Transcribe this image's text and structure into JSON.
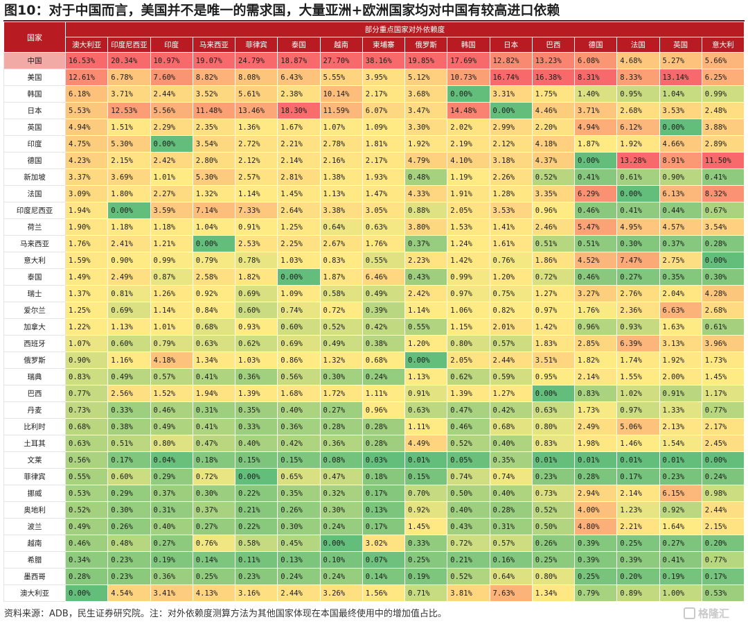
{
  "title": "图10：对于中国而言，美国并不是唯一的需求国，大量亚洲+欧洲国家均对中国有较高进口依赖",
  "footer": "资料来源：ADB，民生证券研究院。注：对外依赖度测算方法为其他国家体现在本国最终使用中的增加值占比。",
  "watermark": "格隆汇",
  "table": {
    "corner_label": "国家",
    "group_label": "部分重点国家对外依赖度",
    "columns": [
      "澳大利亚",
      "印度尼西亚",
      "印度",
      "马来西亚",
      "菲律宾",
      "泰国",
      "越南",
      "柬埔寨",
      "俄罗斯",
      "韩国",
      "日本",
      "巴西",
      "德国",
      "法国",
      "英国",
      "意大利"
    ],
    "rows": [
      {
        "country": "中国",
        "values": [
          "16.53%",
          "20.34%",
          "10.97%",
          "19.07%",
          "24.79%",
          "18.87%",
          "27.70%",
          "38.16%",
          "19.85%",
          "17.69%",
          "12.82%",
          "13.23%",
          "6.08%",
          "4.68%",
          "5.27%",
          "5.66%"
        ]
      },
      {
        "country": "美国",
        "values": [
          "12.61%",
          "6.78%",
          "7.60%",
          "8.82%",
          "8.08%",
          "6.43%",
          "5.55%",
          "3.95%",
          "5.12%",
          "10.73%",
          "16.74%",
          "16.38%",
          "8.31%",
          "8.33%",
          "13.14%",
          "6.25%"
        ]
      },
      {
        "country": "韩国",
        "values": [
          "6.18%",
          "3.71%",
          "2.44%",
          "3.52%",
          "5.61%",
          "2.38%",
          "10.14%",
          "2.17%",
          "3.68%",
          "0.00%",
          "3.31%",
          "1.75%",
          "1.40%",
          "0.95%",
          "1.04%",
          "0.99%"
        ]
      },
      {
        "country": "日本",
        "values": [
          "5.53%",
          "12.53%",
          "5.56%",
          "11.48%",
          "13.46%",
          "18.30%",
          "11.59%",
          "6.07%",
          "3.47%",
          "14.48%",
          "0.00%",
          "4.46%",
          "3.71%",
          "2.68%",
          "3.53%",
          "2.48%"
        ]
      },
      {
        "country": "英国",
        "values": [
          "4.94%",
          "1.51%",
          "2.29%",
          "2.35%",
          "1.36%",
          "1.67%",
          "1.07%",
          "1.09%",
          "3.30%",
          "2.02%",
          "2.99%",
          "2.20%",
          "4.94%",
          "6.12%",
          "0.00%",
          "3.88%"
        ]
      },
      {
        "country": "印度",
        "values": [
          "4.75%",
          "5.30%",
          "0.00%",
          "3.54%",
          "2.72%",
          "2.21%",
          "2.78%",
          "1.81%",
          "1.92%",
          "2.19%",
          "2.12%",
          "4.18%",
          "1.87%",
          "1.92%",
          "4.66%",
          "2.89%"
        ]
      },
      {
        "country": "德国",
        "values": [
          "4.23%",
          "2.15%",
          "2.42%",
          "2.80%",
          "2.12%",
          "2.14%",
          "2.16%",
          "2.17%",
          "4.79%",
          "4.10%",
          "3.18%",
          "4.37%",
          "0.00%",
          "13.28%",
          "8.91%",
          "11.50%"
        ]
      },
      {
        "country": "新加坡",
        "values": [
          "3.37%",
          "3.69%",
          "1.01%",
          "5.30%",
          "2.57%",
          "2.81%",
          "1.38%",
          "1.93%",
          "0.48%",
          "1.19%",
          "2.26%",
          "0.52%",
          "0.41%",
          "0.61%",
          "0.90%",
          "0.41%"
        ]
      },
      {
        "country": "法国",
        "values": [
          "3.09%",
          "1.80%",
          "2.27%",
          "1.32%",
          "1.14%",
          "1.45%",
          "1.13%",
          "1.47%",
          "4.33%",
          "1.91%",
          "1.28%",
          "3.35%",
          "6.29%",
          "0.00%",
          "6.13%",
          "8.32%"
        ]
      },
      {
        "country": "印度尼西亚",
        "values": [
          "1.94%",
          "0.00%",
          "3.59%",
          "7.14%",
          "7.33%",
          "2.64%",
          "3.38%",
          "3.05%",
          "0.88%",
          "2.05%",
          "3.53%",
          "0.96%",
          "0.46%",
          "0.41%",
          "0.44%",
          "0.67%"
        ]
      },
      {
        "country": "荷兰",
        "values": [
          "1.90%",
          "1.18%",
          "1.18%",
          "1.04%",
          "0.91%",
          "1.25%",
          "0.64%",
          "0.63%",
          "3.80%",
          "1.53%",
          "1.41%",
          "2.46%",
          "5.47%",
          "4.95%",
          "4.57%",
          "3.54%"
        ]
      },
      {
        "country": "马来西亚",
        "values": [
          "1.76%",
          "2.41%",
          "1.21%",
          "0.00%",
          "2.53%",
          "2.25%",
          "2.67%",
          "1.76%",
          "0.37%",
          "1.24%",
          "1.61%",
          "0.51%",
          "0.51%",
          "0.30%",
          "0.37%",
          "0.28%"
        ]
      },
      {
        "country": "意大利",
        "values": [
          "1.59%",
          "0.90%",
          "0.99%",
          "0.79%",
          "0.78%",
          "1.03%",
          "0.83%",
          "0.55%",
          "2.23%",
          "1.42%",
          "0.76%",
          "1.86%",
          "4.52%",
          "7.47%",
          "2.75%",
          "0.00%"
        ]
      },
      {
        "country": "泰国",
        "values": [
          "1.49%",
          "2.49%",
          "0.87%",
          "2.58%",
          "1.82%",
          "0.00%",
          "1.87%",
          "6.46%",
          "0.43%",
          "0.99%",
          "1.20%",
          "0.72%",
          "0.46%",
          "0.27%",
          "0.35%",
          "0.30%"
        ]
      },
      {
        "country": "瑞士",
        "values": [
          "1.37%",
          "0.81%",
          "1.26%",
          "0.92%",
          "0.69%",
          "1.09%",
          "0.58%",
          "0.49%",
          "2.42%",
          "0.97%",
          "0.75%",
          "1.27%",
          "3.27%",
          "2.76%",
          "2.04%",
          "4.28%"
        ]
      },
      {
        "country": "爱尔兰",
        "values": [
          "1.25%",
          "0.69%",
          "1.14%",
          "0.84%",
          "0.60%",
          "0.74%",
          "0.72%",
          "0.39%",
          "1.14%",
          "1.06%",
          "0.82%",
          "0.97%",
          "1.76%",
          "2.36%",
          "6.63%",
          "2.68%"
        ]
      },
      {
        "country": "加拿大",
        "values": [
          "1.22%",
          "1.13%",
          "1.01%",
          "0.68%",
          "0.93%",
          "0.60%",
          "0.52%",
          "0.42%",
          "0.55%",
          "1.15%",
          "2.01%",
          "1.42%",
          "0.96%",
          "0.93%",
          "1.63%",
          "0.61%"
        ]
      },
      {
        "country": "西班牙",
        "values": [
          "1.07%",
          "0.60%",
          "0.79%",
          "0.63%",
          "0.62%",
          "0.69%",
          "0.49%",
          "0.38%",
          "1.20%",
          "0.80%",
          "0.57%",
          "1.83%",
          "2.85%",
          "6.39%",
          "3.13%",
          "3.96%"
        ]
      },
      {
        "country": "俄罗斯",
        "values": [
          "0.90%",
          "1.16%",
          "4.18%",
          "1.34%",
          "1.03%",
          "0.86%",
          "1.32%",
          "0.68%",
          "0.00%",
          "2.05%",
          "2.44%",
          "3.51%",
          "1.82%",
          "1.74%",
          "1.92%",
          "1.73%"
        ]
      },
      {
        "country": "瑞典",
        "values": [
          "0.83%",
          "0.49%",
          "0.57%",
          "0.41%",
          "0.36%",
          "0.56%",
          "0.30%",
          "0.24%",
          "1.13%",
          "0.62%",
          "0.59%",
          "0.95%",
          "2.14%",
          "1.55%",
          "2.00%",
          "1.45%"
        ]
      },
      {
        "country": "巴西",
        "values": [
          "0.77%",
          "2.56%",
          "1.52%",
          "1.94%",
          "1.39%",
          "1.68%",
          "1.72%",
          "1.11%",
          "0.91%",
          "1.39%",
          "1.27%",
          "0.00%",
          "0.83%",
          "1.02%",
          "0.91%",
          "1.17%"
        ]
      },
      {
        "country": "丹麦",
        "values": [
          "0.73%",
          "0.33%",
          "0.46%",
          "0.31%",
          "0.35%",
          "0.40%",
          "0.27%",
          "0.96%",
          "0.63%",
          "0.47%",
          "0.42%",
          "0.63%",
          "1.73%",
          "0.97%",
          "1.33%",
          "0.77%"
        ]
      },
      {
        "country": "比利时",
        "values": [
          "0.68%",
          "0.38%",
          "0.49%",
          "0.41%",
          "0.33%",
          "0.36%",
          "0.28%",
          "0.28%",
          "1.11%",
          "0.46%",
          "0.68%",
          "0.80%",
          "2.49%",
          "5.06%",
          "2.13%",
          "2.17%"
        ]
      },
      {
        "country": "土耳其",
        "values": [
          "0.63%",
          "0.51%",
          "0.80%",
          "0.47%",
          "0.40%",
          "0.42%",
          "0.36%",
          "0.28%",
          "4.49%",
          "0.52%",
          "0.40%",
          "0.83%",
          "1.98%",
          "1.46%",
          "1.54%",
          "2.45%"
        ]
      },
      {
        "country": "文莱",
        "values": [
          "0.56%",
          "0.17%",
          "0.04%",
          "0.18%",
          "0.15%",
          "0.15%",
          "0.08%",
          "0.03%",
          "0.01%",
          "0.05%",
          "0.35%",
          "0.01%",
          "0.01%",
          "0.01%",
          "0.01%",
          "0.00%"
        ]
      },
      {
        "country": "菲律宾",
        "values": [
          "0.55%",
          "0.60%",
          "0.29%",
          "0.72%",
          "0.00%",
          "0.65%",
          "0.47%",
          "0.18%",
          "0.15%",
          "0.74%",
          "0.74%",
          "0.23%",
          "0.28%",
          "0.17%",
          "0.23%",
          "0.24%"
        ]
      },
      {
        "country": "挪威",
        "values": [
          "0.53%",
          "0.29%",
          "0.37%",
          "0.30%",
          "0.22%",
          "0.35%",
          "0.32%",
          "0.17%",
          "0.70%",
          "0.50%",
          "0.40%",
          "0.73%",
          "2.94%",
          "2.14%",
          "6.15%",
          "0.98%"
        ]
      },
      {
        "country": "奥地利",
        "values": [
          "0.52%",
          "0.30%",
          "0.31%",
          "0.37%",
          "0.21%",
          "0.26%",
          "0.30%",
          "0.13%",
          "0.92%",
          "0.40%",
          "0.28%",
          "0.52%",
          "4.00%",
          "1.23%",
          "0.92%",
          "2.44%"
        ]
      },
      {
        "country": "波兰",
        "values": [
          "0.49%",
          "0.26%",
          "0.40%",
          "0.27%",
          "0.22%",
          "0.30%",
          "0.24%",
          "0.17%",
          "1.45%",
          "0.43%",
          "0.31%",
          "0.50%",
          "4.80%",
          "2.21%",
          "1.64%",
          "2.15%"
        ]
      },
      {
        "country": "越南",
        "values": [
          "0.46%",
          "0.48%",
          "0.27%",
          "0.76%",
          "0.58%",
          "0.45%",
          "0.00%",
          "3.02%",
          "0.33%",
          "0.72%",
          "0.57%",
          "0.26%",
          "0.39%",
          "0.25%",
          "0.27%",
          "0.20%"
        ]
      },
      {
        "country": "希腊",
        "values": [
          "0.34%",
          "0.23%",
          "0.19%",
          "0.14%",
          "0.11%",
          "0.13%",
          "0.10%",
          "0.07%",
          "0.25%",
          "0.21%",
          "0.16%",
          "0.25%",
          "0.39%",
          "0.39%",
          "0.41%",
          "0.77%"
        ]
      },
      {
        "country": "墨西哥",
        "values": [
          "0.28%",
          "0.23%",
          "0.36%",
          "0.25%",
          "0.23%",
          "0.24%",
          "0.24%",
          "0.14%",
          "0.19%",
          "0.52%",
          "0.64%",
          "0.80%",
          "0.25%",
          "0.20%",
          "0.19%",
          "0.17%"
        ]
      },
      {
        "country": "澳大利亚",
        "values": [
          "0.00%",
          "4.54%",
          "3.41%",
          "4.13%",
          "3.16%",
          "2.44%",
          "3.26%",
          "1.56%",
          "0.71%",
          "3.81%",
          "7.63%",
          "1.34%",
          "0.79%",
          "0.89%",
          "1.00%",
          "0.53%"
        ]
      }
    ],
    "highlight_row": "中国",
    "heat_colors": {
      "low": "#63be7b",
      "mid": "#ffeb84",
      "high": "#f8696b",
      "header": "#b81c22",
      "row_highlight": "#f2aaa7"
    }
  }
}
